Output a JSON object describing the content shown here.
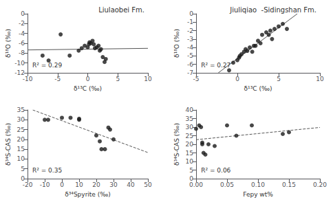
{
  "chart_data": [
    {
      "type": "scatter",
      "title": "Liulaobei Fm.",
      "xlabel": "δ¹³C (‰)",
      "ylabel": "δ¹⁸O (‰)",
      "annotation": "R² = 0.29",
      "xlim": [
        -10,
        10
      ],
      "ylim": [
        -12,
        0
      ],
      "xticks": [
        -10,
        -5,
        0,
        5,
        10
      ],
      "yticks": [
        -12,
        -10,
        -8,
        -6,
        -4,
        -2,
        0
      ],
      "grid": false,
      "series": [
        {
          "type": "scatter",
          "marker": "circle",
          "color": "#1a1a1a",
          "x": [
            -7.5,
            -6.5,
            -4.5,
            -3.0,
            -1.5,
            -1.0,
            -0.5,
            0.0,
            0.2,
            0.3,
            0.5,
            0.8,
            1.0,
            1.2,
            1.5,
            1.8,
            2.0,
            2.2,
            2.5,
            2.8,
            3.0
          ],
          "values": [
            -8.5,
            -9.5,
            -4.2,
            -8.5,
            -7.5,
            -7.0,
            -6.5,
            -6.8,
            -6.2,
            -5.8,
            -6.0,
            -5.5,
            -6.2,
            -7.0,
            -6.8,
            -6.5,
            -7.5,
            -7.2,
            -8.8,
            -9.8,
            -9.2
          ]
        },
        {
          "type": "line",
          "line_style": "solid",
          "color": "#555555",
          "x": [
            -10,
            10
          ],
          "values": [
            -7.353,
            -7.0205
          ]
        }
      ]
    },
    {
      "type": "scatter",
      "title": "Jiuliqiao  -Sidingshan Fm.",
      "xlabel": "δ¹³C (‰)",
      "ylabel": "δ¹⁸O (‰)",
      "annotation": "R² = 0.27",
      "xlim": [
        -5,
        10
      ],
      "ylim": [
        -7,
        0
      ],
      "xticks": [
        -5,
        0,
        5,
        10
      ],
      "yticks": [
        -7,
        -6,
        -5,
        -4,
        -3,
        -2,
        -1,
        0
      ],
      "grid": false,
      "series": [
        {
          "type": "scatter",
          "marker": "circle",
          "color": "#1a1a1a",
          "x": [
            -1.0,
            -0.5,
            0.0,
            0.2,
            0.5,
            0.8,
            1.0,
            1.5,
            2.0,
            2.5,
            3.0,
            3.5,
            4.0,
            4.5,
            5.0,
            5.5,
            6.0,
            0.3,
            1.2,
            2.8,
            3.8,
            4.2,
            1.8,
            2.2
          ],
          "values": [
            -6.7,
            -5.8,
            -5.5,
            -5.2,
            -4.8,
            -4.5,
            -4.2,
            -4.0,
            -3.8,
            -3.2,
            -2.5,
            -2.2,
            -2.0,
            -1.8,
            -1.5,
            -1.2,
            -1.8,
            -5.0,
            -4.4,
            -3.5,
            -2.5,
            -3.0,
            -4.5,
            -3.8
          ]
        },
        {
          "type": "line",
          "line_style": "solid",
          "color": "#555555",
          "x": [
            -2.3076,
            7.2616
          ],
          "values": [
            -7,
            0
          ]
        }
      ]
    },
    {
      "type": "scatter",
      "xlabel": "δ³⁴Spyrite (‰)",
      "ylabel": "δ³⁴S-CAS (‰)",
      "annotation": "R² = 0.35",
      "xlim": [
        -20,
        50
      ],
      "ylim": [
        0,
        35
      ],
      "xticks": [
        -20,
        -10,
        0,
        10,
        20,
        30,
        40,
        50
      ],
      "yticks": [
        0,
        5,
        10,
        15,
        20,
        25,
        30,
        35
      ],
      "grid": false,
      "series": [
        {
          "type": "scatter",
          "marker": "circle",
          "color": "#1a1a1a",
          "x": [
            -10,
            -8,
            0,
            5,
            10,
            10,
            20,
            22,
            23,
            25,
            27,
            28,
            30
          ],
          "values": [
            30,
            30,
            31,
            31,
            30,
            30.5,
            22,
            19,
            15,
            15,
            26,
            25,
            20
          ]
        },
        {
          "type": "line",
          "line_style": "dashed",
          "color": "#555555",
          "x": [
            -16.9666,
            50
          ],
          "values": [
            35,
            13.2914
          ]
        }
      ]
    },
    {
      "type": "scatter",
      "xlabel": "Fepy wt%",
      "ylabel": "δ³⁴S-CAS (‰)",
      "annotation": "R² = 0.06",
      "xlim": [
        0.0,
        0.2
      ],
      "ylim": [
        0,
        40
      ],
      "xticks": [
        {
          "value": 0.0,
          "label": "0.00"
        },
        0.05,
        {
          "value": 0.1,
          "label": "0.10"
        },
        0.15,
        {
          "value": 0.2,
          "label": "0.20"
        }
      ],
      "yticks": [
        0,
        5,
        10,
        15,
        20,
        25,
        30,
        35,
        40
      ],
      "grid": false,
      "series": [
        {
          "type": "scatter",
          "marker": "circle",
          "color": "#1a1a1a",
          "x": [
            0.0,
            0.005,
            0.008,
            0.01,
            0.01,
            0.012,
            0.015,
            0.02,
            0.03,
            0.05,
            0.065,
            0.09,
            0.14,
            0.15
          ],
          "values": [
            29,
            31,
            30,
            21,
            20,
            15,
            14,
            20,
            19,
            31,
            25,
            31,
            26,
            27
          ]
        },
        {
          "type": "line",
          "line_style": "dashed",
          "color": "#555555",
          "x": [
            0.0,
            0.2
          ],
          "values": [
            22.6694,
            29.8192
          ]
        }
      ]
    }
  ]
}
